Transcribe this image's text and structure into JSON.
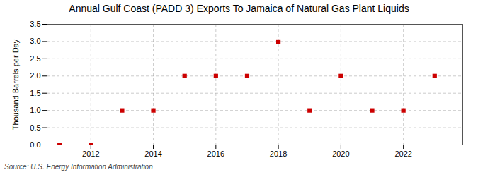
{
  "chart_data": {
    "type": "scatter",
    "title": "Annual Gulf Coast (PADD 3) Exports To Jamaica of Natural Gas Plant Liquids",
    "ylabel": "Thousand Barrels per Day",
    "caption": "Source: U.S. Energy Information Administration",
    "x": [
      2011,
      2012,
      2013,
      2014,
      2015,
      2016,
      2017,
      2018,
      2019,
      2020,
      2021,
      2022,
      2023
    ],
    "values": [
      0.0,
      0.0,
      1.0,
      1.0,
      2.0,
      2.0,
      2.0,
      3.0,
      1.0,
      2.0,
      1.0,
      1.0,
      2.0
    ],
    "color": "#cc0000",
    "marker": "square",
    "xlim": [
      2010.6,
      2023.9
    ],
    "xticks": [
      2012,
      2014,
      2016,
      2018,
      2020,
      2022
    ],
    "ylim": [
      0,
      3.5
    ],
    "yticks": [
      {
        "value": 0,
        "label": "0.0"
      },
      {
        "value": 0.5,
        "label": "0.5"
      },
      {
        "value": 1,
        "label": "1.0"
      },
      {
        "value": 1.5,
        "label": "1.5"
      },
      {
        "value": 2,
        "label": "2.0"
      },
      {
        "value": 2.5,
        "label": "2.5"
      },
      {
        "value": 3,
        "label": "3.0"
      },
      {
        "value": 3.5,
        "label": "3.5"
      }
    ],
    "grid": true
  }
}
